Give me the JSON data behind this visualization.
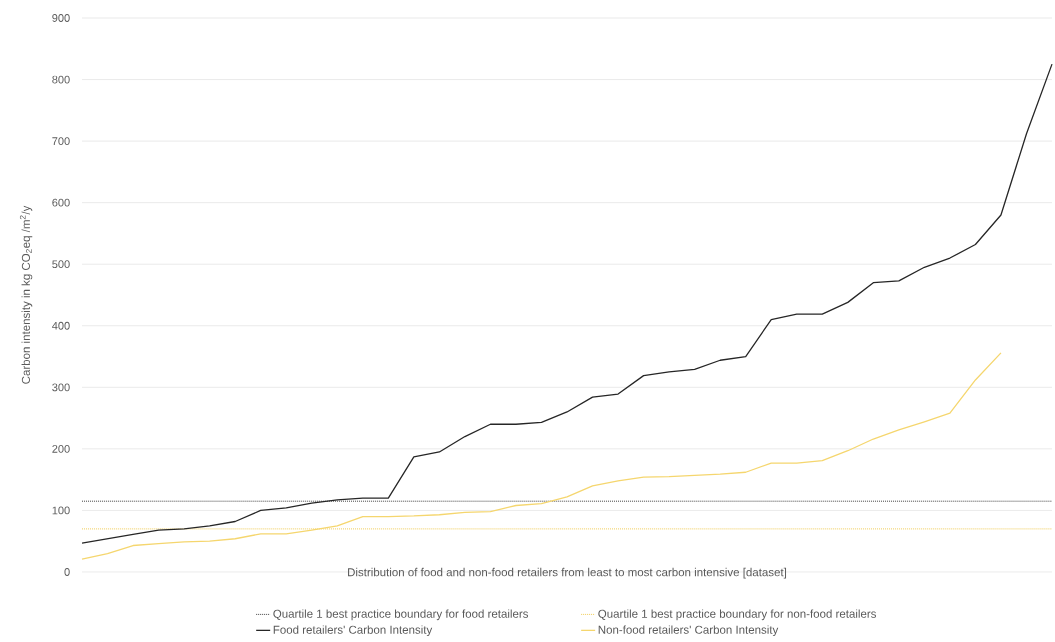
{
  "chart_data": {
    "type": "line",
    "xlabel": "Distribution of food and non-food retailers from least to most carbon intensive [dataset]",
    "ylabel": "Carbon intensity in kg CO$_{2}$eq /m$^{2}$/y",
    "categories": [
      null,
      null,
      null,
      null,
      null,
      null,
      null,
      null,
      null,
      null,
      null,
      null,
      null,
      null,
      null,
      null,
      null,
      null,
      null,
      null,
      null,
      null,
      null,
      null,
      null,
      null,
      null,
      null,
      null,
      null,
      null,
      null,
      null,
      null,
      null,
      null,
      null,
      null,
      null
    ],
    "series": [
      {
        "name": "Food retailers' Carbon Intensity",
        "color": "#262626",
        "line_style": "solid",
        "values": [
          47,
          54,
          61,
          68,
          70,
          75,
          82,
          100,
          104,
          112,
          117,
          120,
          120,
          187,
          195,
          220,
          240,
          240,
          243,
          260,
          284,
          289,
          319,
          325,
          329,
          344,
          350,
          410,
          419,
          419,
          438,
          470,
          473,
          495,
          510,
          532,
          580,
          712,
          825
        ]
      },
      {
        "name": "Non-food retailers' Carbon Intensity",
        "color": "#f5d66e",
        "line_style": "solid",
        "values": [
          21,
          30,
          43,
          46,
          49,
          50,
          54,
          62,
          62,
          68,
          75,
          90,
          90,
          91,
          93,
          97,
          98,
          108,
          111,
          122,
          140,
          148,
          154,
          155,
          157,
          159,
          162,
          177,
          177,
          181,
          197,
          216,
          231,
          244,
          258,
          312,
          356,
          null,
          null
        ]
      }
    ],
    "ref_lines": [
      {
        "axis": "y",
        "value": 115,
        "label": "Quartile 1 best practice boundary for food retailers",
        "color": "#404040",
        "line_style": "dotted"
      },
      {
        "axis": "y",
        "value": 70,
        "label": "Quartile 1 best practice boundary for non-food retailers",
        "color": "#f0cc55",
        "line_style": "dotted"
      }
    ],
    "ylim": [
      0,
      900
    ],
    "yticks": [
      0,
      100,
      200,
      300,
      400,
      500,
      600,
      700,
      800,
      900
    ],
    "grid": "y",
    "legend": "bottom",
    "tick_labels": "y",
    "marker": "none"
  }
}
